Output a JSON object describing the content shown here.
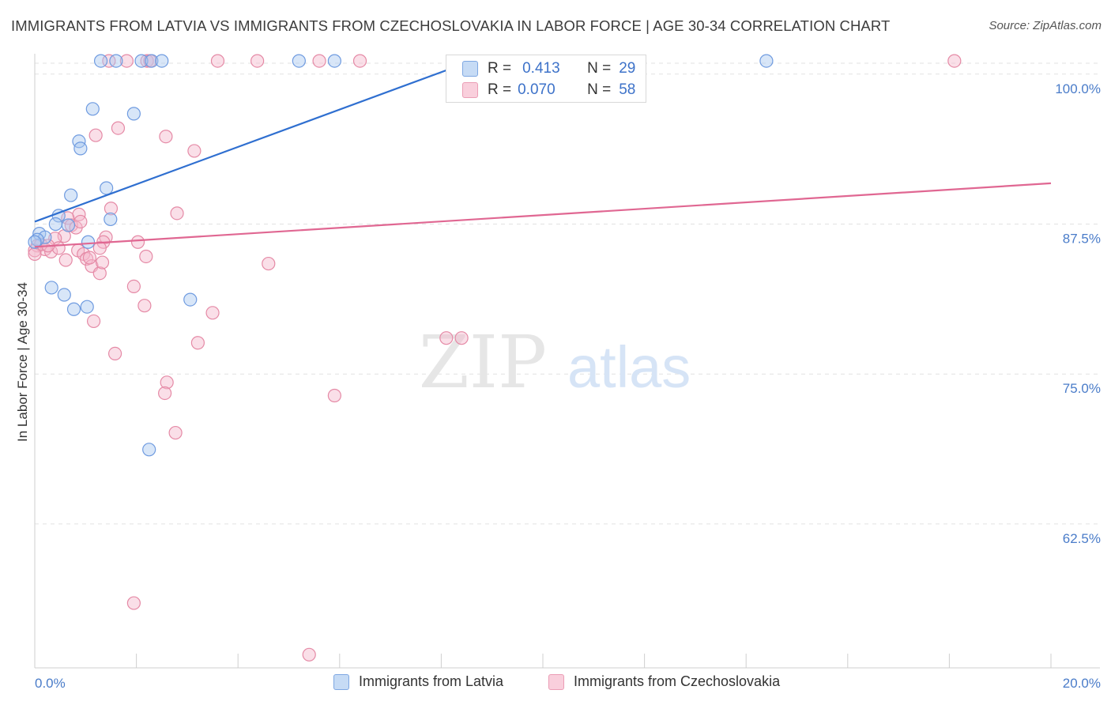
{
  "title": "IMMIGRANTS FROM LATVIA VS IMMIGRANTS FROM CZECHOSLOVAKIA IN LABOR FORCE | AGE 30-34 CORRELATION CHART",
  "source": "Source: ZipAtlas.com",
  "watermark": {
    "zip": "ZIP",
    "atlas": "atlas"
  },
  "stats": {
    "r_label": "R =",
    "n_label": "N =",
    "rows": [
      {
        "r": "0.413",
        "n": "29",
        "color": "#a9c7ef"
      },
      {
        "r": "0.070",
        "n": "58",
        "color": "#f4b8cb"
      }
    ]
  },
  "legend": [
    {
      "label": "Immigrants from Latvia",
      "color": "#a9c7ef"
    },
    {
      "label": "Immigrants from Czechoslovakia",
      "color": "#f4b8cb"
    }
  ],
  "colors": {
    "blue_fill": "#a9c7ef",
    "blue_stroke": "#6f9be0",
    "blue_line": "#2f6fd0",
    "pink_fill": "#f4b8cb",
    "pink_stroke": "#e58aa6",
    "pink_line": "#e06792",
    "tick_label": "#4a7cc9",
    "grid": "#e2e2e2"
  },
  "chart_data": {
    "type": "scatter",
    "title": "IMMIGRANTS FROM LATVIA VS IMMIGRANTS FROM CZECHOSLOVAKIA IN LABOR FORCE | AGE 30-34 CORRELATION CHART",
    "xlabel": "",
    "ylabel": "In Labor Force | Age 30-34",
    "xlim": [
      0,
      20
    ],
    "ylim": [
      50.5,
      101.7
    ],
    "x_tick_labels": [
      {
        "value": 0,
        "label": "0.0%"
      },
      {
        "value": 20,
        "label": "20.0%"
      }
    ],
    "y_tick_labels": [
      {
        "value": 100,
        "label": "100.0%"
      },
      {
        "value": 87.5,
        "label": "87.5%"
      },
      {
        "value": 75,
        "label": "75.0%"
      },
      {
        "value": 62.5,
        "label": "62.5%"
      }
    ],
    "grid": true,
    "series": [
      {
        "name": "Immigrants from Latvia",
        "trend": {
          "x": [
            0,
            8.6
          ],
          "y": [
            87.7,
            101.1
          ]
        },
        "points": [
          [
            1.3,
            101.1
          ],
          [
            1.6,
            101.1
          ],
          [
            2.1,
            101.1
          ],
          [
            2.3,
            101.1
          ],
          [
            2.5,
            101.1
          ],
          [
            5.2,
            101.1
          ],
          [
            5.9,
            101.1
          ],
          [
            14.4,
            101.1
          ],
          [
            1.14,
            97.1
          ],
          [
            1.95,
            96.7
          ],
          [
            0.87,
            94.4
          ],
          [
            0.9,
            93.8
          ],
          [
            1.41,
            90.5
          ],
          [
            0.71,
            89.9
          ],
          [
            0.47,
            88.2
          ],
          [
            0.41,
            87.5
          ],
          [
            0.66,
            87.4
          ],
          [
            1.49,
            87.9
          ],
          [
            0.09,
            86.7
          ],
          [
            0.2,
            86.4
          ],
          [
            0.05,
            86.2
          ],
          [
            1.05,
            86.0
          ],
          [
            0.33,
            82.2
          ],
          [
            0.58,
            81.6
          ],
          [
            0.77,
            80.4
          ],
          [
            1.03,
            80.6
          ],
          [
            3.06,
            81.2
          ],
          [
            2.25,
            68.7
          ],
          [
            0.0,
            86.0
          ]
        ]
      },
      {
        "name": "Immigrants from Czechoslovakia",
        "trend": {
          "x": [
            0,
            20
          ],
          "y": [
            85.6,
            90.9
          ]
        },
        "points": [
          [
            1.81,
            101.1
          ],
          [
            1.46,
            101.1
          ],
          [
            2.21,
            101.1
          ],
          [
            2.27,
            101.1
          ],
          [
            3.6,
            101.1
          ],
          [
            4.38,
            101.1
          ],
          [
            5.6,
            101.1
          ],
          [
            6.4,
            101.1
          ],
          [
            18.1,
            101.1
          ],
          [
            1.2,
            94.9
          ],
          [
            1.64,
            95.5
          ],
          [
            2.58,
            94.8
          ],
          [
            3.14,
            93.6
          ],
          [
            1.5,
            88.8
          ],
          [
            0.87,
            88.3
          ],
          [
            0.65,
            88.0
          ],
          [
            0.72,
            87.4
          ],
          [
            0.81,
            87.2
          ],
          [
            0.58,
            86.5
          ],
          [
            0.4,
            86.3
          ],
          [
            1.4,
            86.4
          ],
          [
            1.35,
            86.0
          ],
          [
            2.03,
            86.0
          ],
          [
            2.8,
            88.4
          ],
          [
            0.05,
            85.7
          ],
          [
            0.2,
            85.4
          ],
          [
            0.32,
            85.2
          ],
          [
            0.47,
            85.5
          ],
          [
            0.85,
            85.3
          ],
          [
            0.96,
            85.0
          ],
          [
            1.28,
            85.5
          ],
          [
            0.61,
            84.5
          ],
          [
            1.02,
            84.6
          ],
          [
            1.12,
            84.0
          ],
          [
            1.08,
            84.7
          ],
          [
            2.19,
            84.8
          ],
          [
            4.6,
            84.2
          ],
          [
            1.28,
            83.4
          ],
          [
            0.0,
            85.3
          ],
          [
            1.95,
            82.3
          ],
          [
            2.16,
            80.7
          ],
          [
            3.5,
            80.1
          ],
          [
            1.16,
            79.4
          ],
          [
            3.21,
            77.6
          ],
          [
            1.58,
            76.7
          ],
          [
            8.1,
            78.0
          ],
          [
            8.4,
            78.0
          ],
          [
            2.6,
            74.3
          ],
          [
            2.56,
            73.4
          ],
          [
            5.9,
            73.2
          ],
          [
            2.77,
            70.1
          ],
          [
            1.95,
            55.9
          ],
          [
            5.4,
            51.6
          ],
          [
            0.12,
            85.8
          ],
          [
            0.26,
            85.7
          ],
          [
            0.9,
            87.7
          ],
          [
            1.33,
            84.3
          ],
          [
            0.0,
            85.0
          ]
        ]
      }
    ]
  }
}
